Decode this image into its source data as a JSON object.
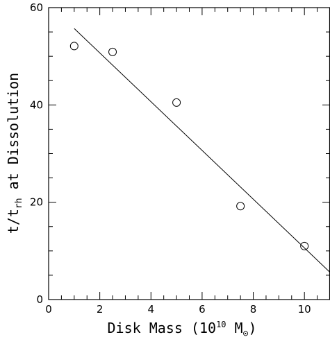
{
  "chart_data": {
    "type": "scatter",
    "title": "",
    "xlabel": {
      "main": "Disk Mass (10",
      "exponent": "10",
      "unit": " M",
      "unit_subscript": "⊙",
      "close": ")"
    },
    "ylabel": {
      "part1": "t/t",
      "subscript": "rh",
      "part2": " at Dissolution"
    },
    "xlim": [
      0,
      11
    ],
    "ylim": [
      0,
      60
    ],
    "x_major_ticks": [
      0,
      2,
      4,
      6,
      8,
      10
    ],
    "x_tick_labels": [
      "0",
      "2",
      "4",
      "6",
      "8",
      "10"
    ],
    "y_major_ticks": [
      0,
      20,
      40,
      60
    ],
    "y_tick_labels": [
      "0",
      "20",
      "40",
      "60"
    ],
    "x_minor_step": 0.5,
    "y_minor_step": 5,
    "grid": false,
    "series": [
      {
        "marker": "open-circle",
        "x": [
          1.0,
          2.5,
          5.0,
          7.5,
          10.0
        ],
        "y": [
          52.1,
          50.9,
          40.5,
          19.2,
          11.0
        ]
      }
    ],
    "fit_line": {
      "x": [
        1.0,
        11.0
      ],
      "y": [
        55.7,
        5.6
      ]
    }
  }
}
